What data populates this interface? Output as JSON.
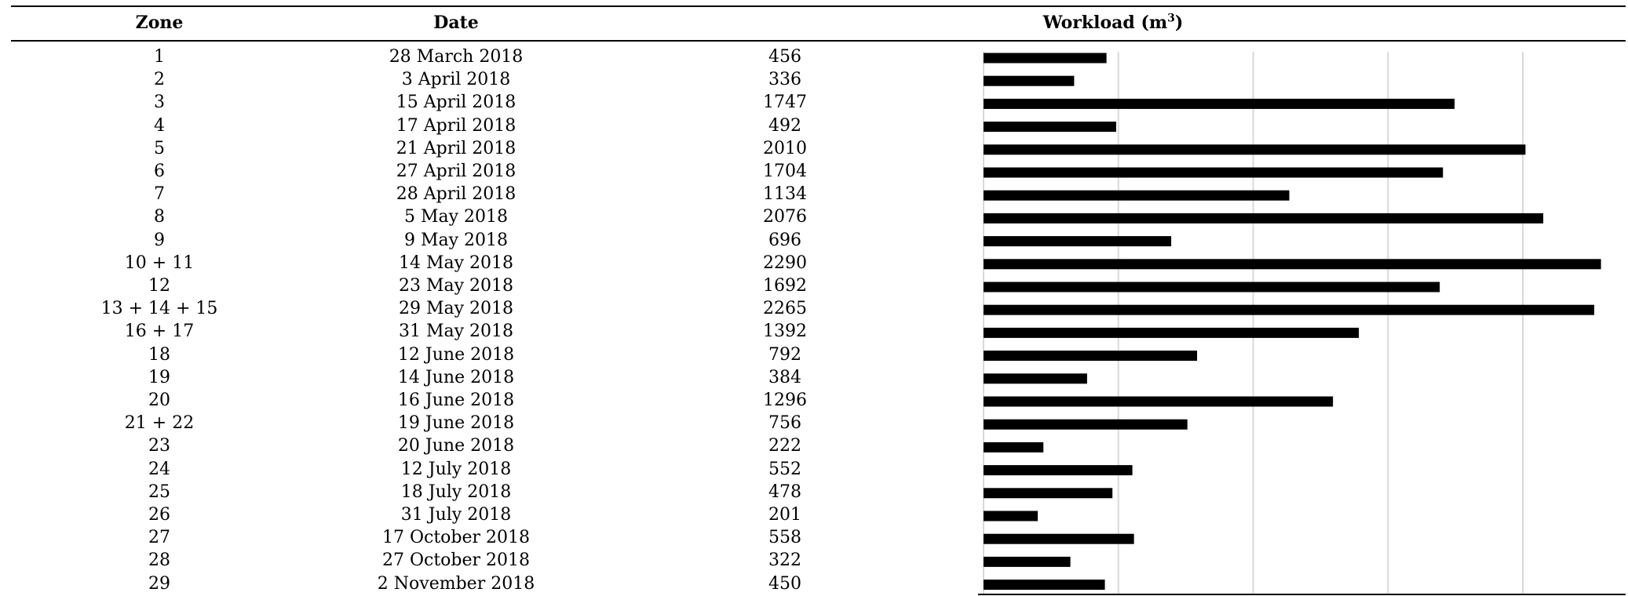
{
  "table": {
    "headers": {
      "zone": "Zone",
      "date": "Date",
      "workload": "Workload (m",
      "workload_sup": "3",
      "workload_close": ")"
    },
    "rows": [
      {
        "zone": "1",
        "date": "28 March 2018",
        "workload": "456"
      },
      {
        "zone": "2",
        "date": "3 April 2018",
        "workload": "336"
      },
      {
        "zone": "3",
        "date": "15 April 2018",
        "workload": "1747"
      },
      {
        "zone": "4",
        "date": "17 April 2018",
        "workload": "492"
      },
      {
        "zone": "5",
        "date": "21 April 2018",
        "workload": "2010"
      },
      {
        "zone": "6",
        "date": "27 April 2018",
        "workload": "1704"
      },
      {
        "zone": "7",
        "date": "28 April 2018",
        "workload": "1134"
      },
      {
        "zone": "8",
        "date": "5 May 2018",
        "workload": "2076"
      },
      {
        "zone": "9",
        "date": "9 May 2018",
        "workload": "696"
      },
      {
        "zone": "10 + 11",
        "date": "14 May 2018",
        "workload": "2290"
      },
      {
        "zone": "12",
        "date": "23 May 2018",
        "workload": "1692"
      },
      {
        "zone": "13 + 14 + 15",
        "date": "29 May 2018",
        "workload": "2265"
      },
      {
        "zone": "16 + 17",
        "date": "31 May 2018",
        "workload": "1392"
      },
      {
        "zone": "18",
        "date": "12 June 2018",
        "workload": "792"
      },
      {
        "zone": "19",
        "date": "14 June 2018",
        "workload": "384"
      },
      {
        "zone": "20",
        "date": "16 June 2018",
        "workload": "1296"
      },
      {
        "zone": "21 + 22",
        "date": "19 June 2018",
        "workload": "756"
      },
      {
        "zone": "23",
        "date": "20 June 2018",
        "workload": "222"
      },
      {
        "zone": "24",
        "date": "12 July 2018",
        "workload": "552"
      },
      {
        "zone": "25",
        "date": "18 July 2018",
        "workload": "478"
      },
      {
        "zone": "26",
        "date": "31 July 2018",
        "workload": "201"
      },
      {
        "zone": "27",
        "date": "17 October 2018",
        "workload": "558"
      },
      {
        "zone": "28",
        "date": "27 October 2018",
        "workload": "322"
      },
      {
        "zone": "29",
        "date": "2 November 2018",
        "workload": "450"
      }
    ]
  },
  "chart_data": {
    "type": "bar",
    "orientation": "horizontal",
    "categories": [
      "1",
      "2",
      "3",
      "4",
      "5",
      "6",
      "7",
      "8",
      "9",
      "10 + 11",
      "12",
      "13 + 14 + 15",
      "16 + 17",
      "18",
      "19",
      "20",
      "21 + 22",
      "23",
      "24",
      "25",
      "26",
      "27",
      "28",
      "29"
    ],
    "values": [
      456,
      336,
      1747,
      492,
      2010,
      1704,
      1134,
      2076,
      696,
      2290,
      1692,
      2265,
      1392,
      792,
      384,
      1296,
      756,
      222,
      552,
      478,
      201,
      558,
      322,
      450
    ],
    "xlim": [
      0,
      2300
    ],
    "grid": true,
    "gridlines_x": [
      500,
      1000,
      1500,
      2000
    ],
    "bar_color": "#000000",
    "grid_color": "#d9d9d9"
  }
}
